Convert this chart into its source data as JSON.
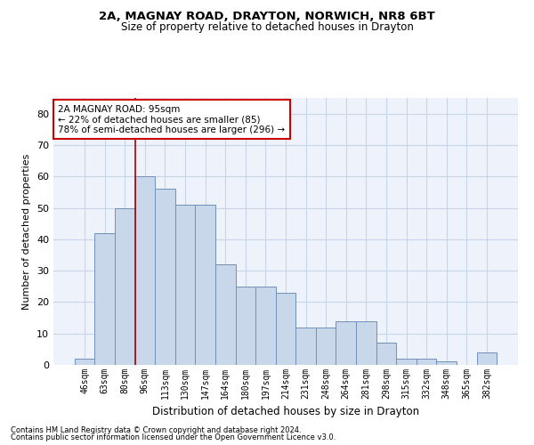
{
  "title1": "2A, MAGNAY ROAD, DRAYTON, NORWICH, NR8 6BT",
  "title2": "Size of property relative to detached houses in Drayton",
  "xlabel": "Distribution of detached houses by size in Drayton",
  "ylabel": "Number of detached properties",
  "categories": [
    "46sqm",
    "63sqm",
    "80sqm",
    "96sqm",
    "113sqm",
    "130sqm",
    "147sqm",
    "164sqm",
    "180sqm",
    "197sqm",
    "214sqm",
    "231sqm",
    "248sqm",
    "264sqm",
    "281sqm",
    "298sqm",
    "315sqm",
    "332sqm",
    "348sqm",
    "365sqm",
    "382sqm"
  ],
  "values": [
    2,
    42,
    50,
    60,
    56,
    51,
    51,
    32,
    25,
    25,
    23,
    12,
    12,
    14,
    14,
    7,
    2,
    2,
    1,
    0,
    4
  ],
  "bar_color": "#c8d8ea",
  "bar_edge_color": "#7090b8",
  "annotation_text": "2A MAGNAY ROAD: 95sqm\n← 22% of detached houses are smaller (85)\n78% of semi-detached houses are larger (296) →",
  "annotation_box_color": "white",
  "annotation_box_edge_color": "#cc0000",
  "vline_color": "#aa0000",
  "vline_x_index": 2.5,
  "ylim": [
    0,
    85
  ],
  "yticks": [
    0,
    10,
    20,
    30,
    40,
    50,
    60,
    70,
    80
  ],
  "grid_color": "#c8d4e8",
  "background_color": "#eef2fb",
  "footer1": "Contains HM Land Registry data © Crown copyright and database right 2024.",
  "footer2": "Contains public sector information licensed under the Open Government Licence v3.0."
}
